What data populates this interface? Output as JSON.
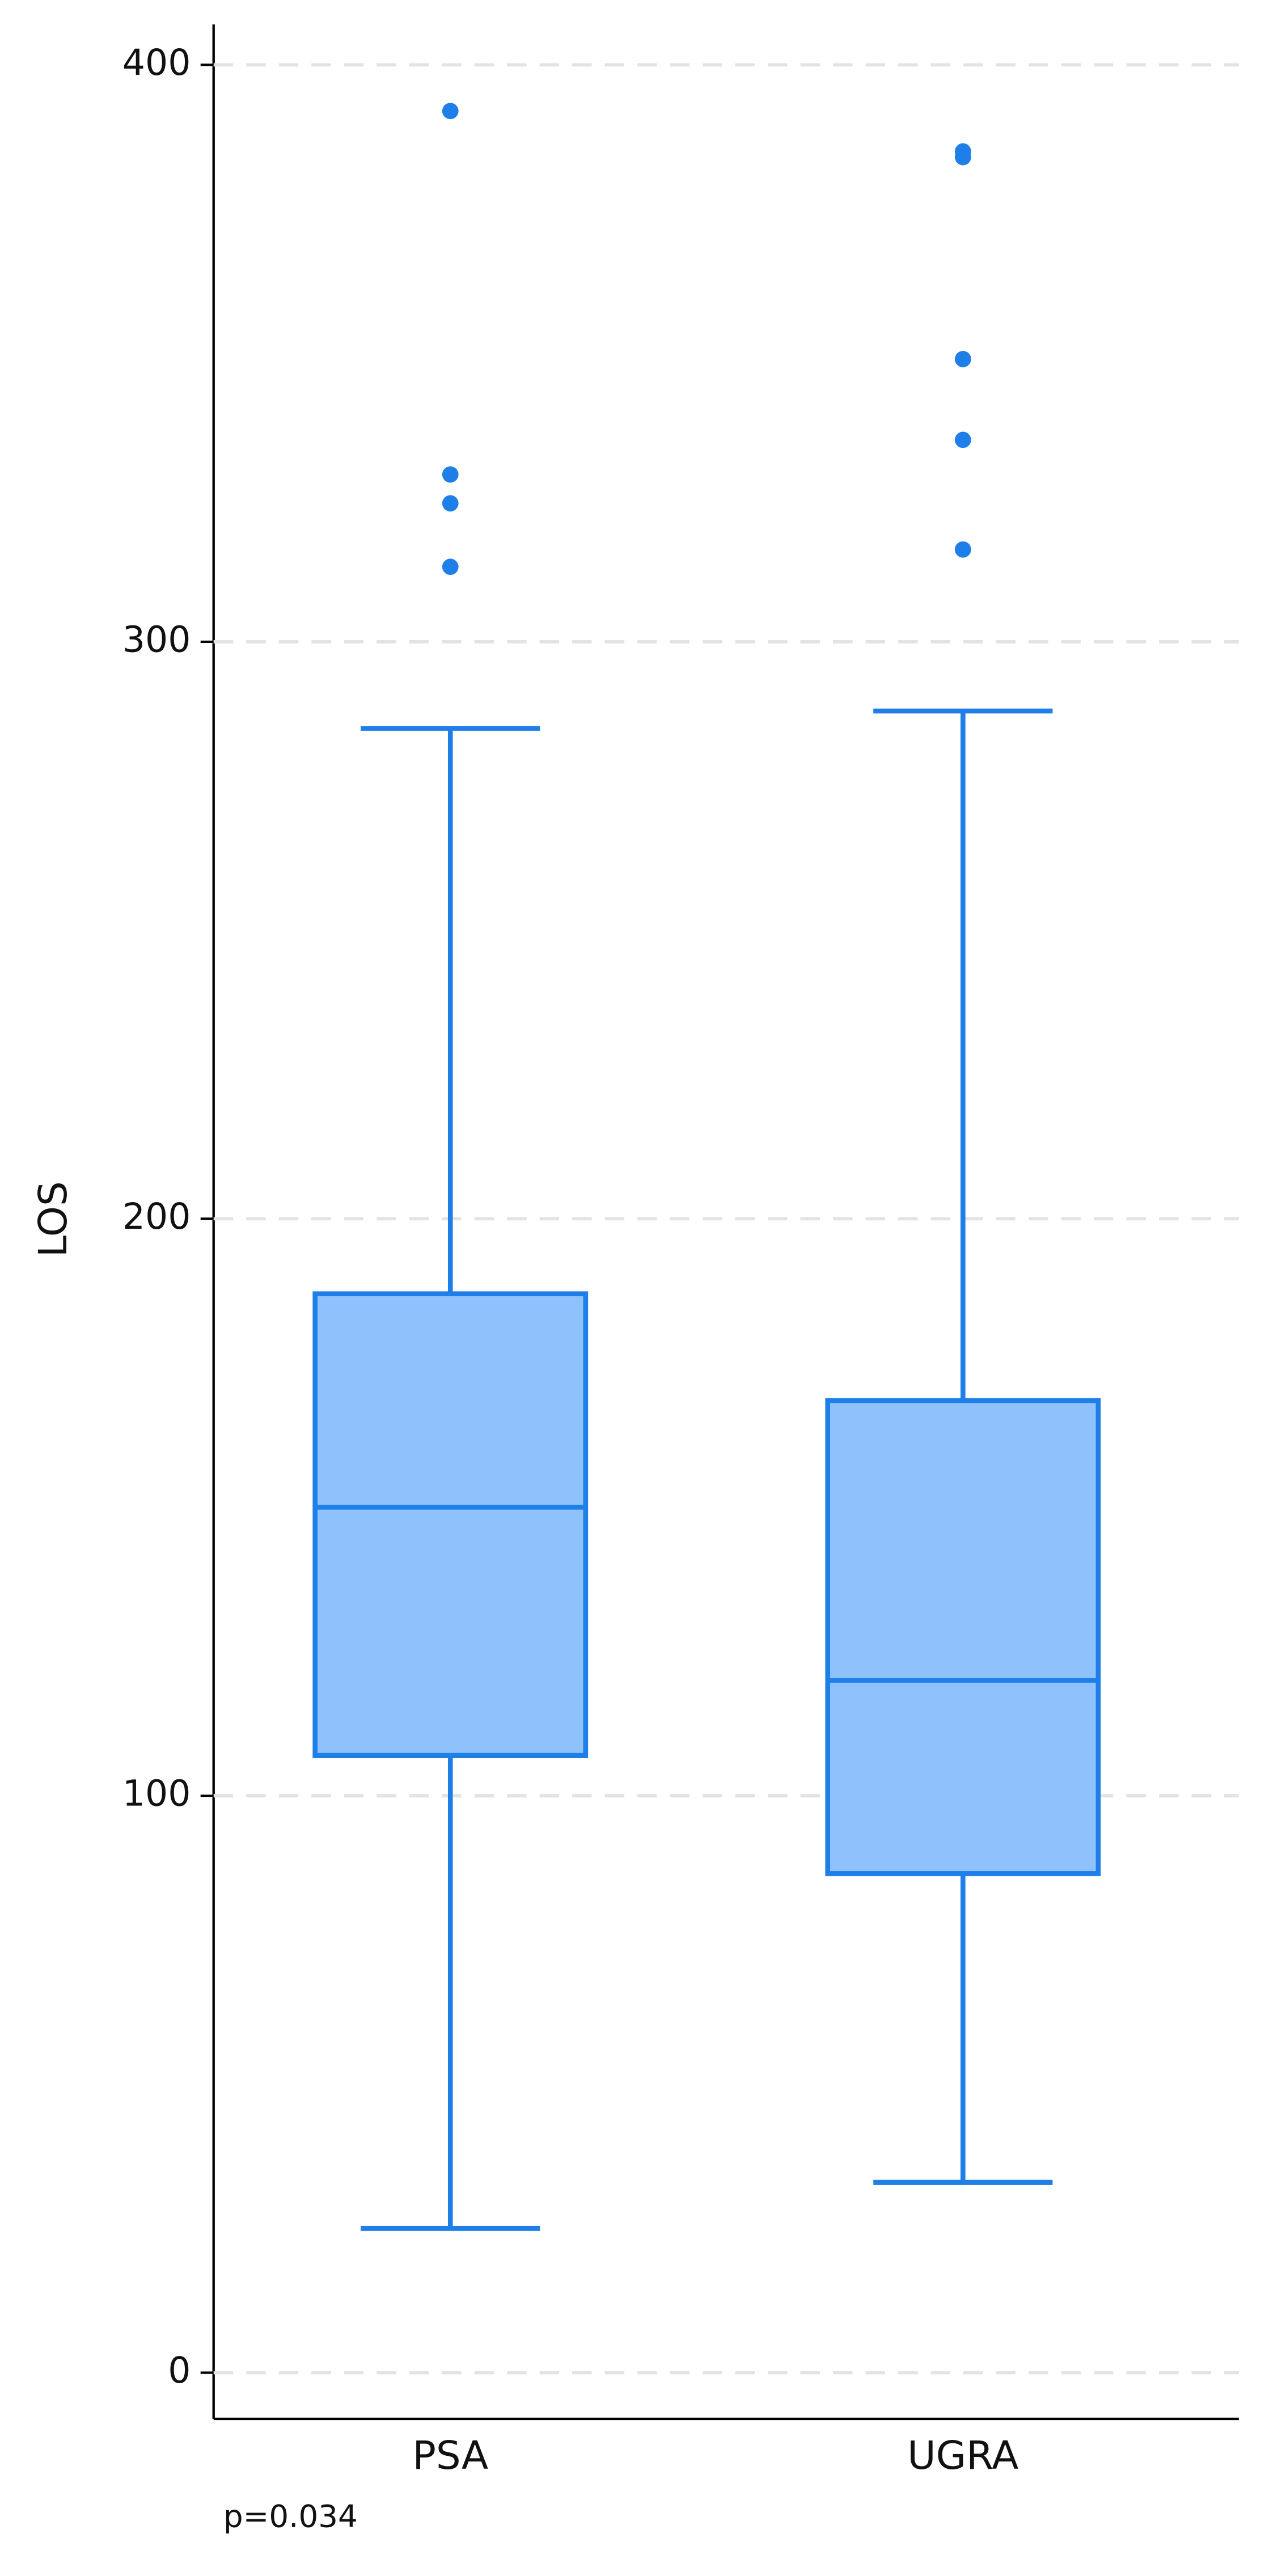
{
  "chart_data": {
    "type": "box",
    "y_label": "LOS",
    "annotation": "p=0.034",
    "categories": [
      "PSA",
      "UGRA"
    ],
    "boxes": [
      {
        "whisker_low": 25,
        "q1": 107,
        "median": 150,
        "q3": 187,
        "whisker_high": 285,
        "outliers": [
          392,
          329,
          324,
          313
        ]
      },
      {
        "whisker_low": 33,
        "q1": 86.5,
        "median": 120,
        "q3": 168.5,
        "whisker_high": 288,
        "outliers": [
          385,
          384,
          349,
          335,
          316
        ]
      }
    ],
    "color": "#1f7fe8",
    "fill": "#8fc1fc",
    "ylim": [
      -8,
      407
    ],
    "yticks": [
      0,
      100,
      200,
      300,
      400
    ],
    "grid": true
  }
}
